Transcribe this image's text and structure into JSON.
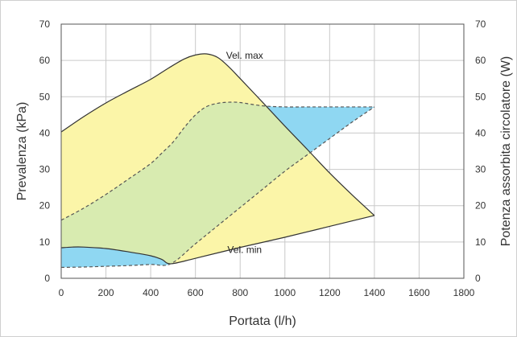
{
  "chart_data": {
    "type": "area",
    "xlabel": "Portata (l/h)",
    "ylabel": "Prevalenza (kPa)",
    "y2label": "Potenza assorbita circolatore (W)",
    "xlim": [
      0,
      1800
    ],
    "ylim": [
      0,
      70
    ],
    "y2lim": [
      0,
      70
    ],
    "xticks": [
      "0",
      "200",
      "400",
      "600",
      "800",
      "1000",
      "1200",
      "1400",
      "1600",
      "1800"
    ],
    "yticks": [
      "0",
      "10",
      "20",
      "30",
      "40",
      "50",
      "60",
      "70"
    ],
    "y2ticks": [
      "0",
      "10",
      "20",
      "30",
      "40",
      "50",
      "60",
      "70"
    ],
    "grid": true,
    "colors": {
      "head_area": "#fbf5a8",
      "power_area": "#8fd7f2",
      "overlap_area": "#d8ebb0"
    },
    "annotations": [
      {
        "text": "Vel. max",
        "x": 820,
        "y": 60.5
      },
      {
        "text": "Vel. min",
        "x": 820,
        "y": 7
      }
    ],
    "series": [
      {
        "kind": "head",
        "axis": "left",
        "style": "solid",
        "label": "Vel. max",
        "x": [
          0,
          100,
          200,
          300,
          400,
          480,
          550,
          600,
          650,
          700,
          750,
          800,
          900,
          1000,
          1100,
          1200,
          1300,
          1400
        ],
        "y": [
          40.3,
          44.5,
          48.3,
          51.6,
          54.8,
          57.9,
          60.4,
          61.5,
          61.8,
          60.8,
          58.2,
          55.0,
          48.5,
          41.9,
          35.5,
          29.0,
          23.0,
          17.3
        ]
      },
      {
        "kind": "head",
        "axis": "left",
        "style": "solid",
        "label": "Vel. min",
        "x": [
          0,
          50,
          100,
          200,
          300,
          400,
          450,
          490,
          600,
          800,
          1000,
          1200,
          1400
        ],
        "y": [
          8.4,
          8.6,
          8.6,
          8.2,
          7.3,
          6.2,
          5.2,
          4.0,
          5.5,
          8.5,
          11.3,
          14.3,
          17.3
        ]
      },
      {
        "kind": "power",
        "axis": "right",
        "style": "dashed",
        "label": "Vel. max",
        "x": [
          0,
          100,
          200,
          300,
          400,
          450,
          500,
          550,
          600,
          650,
          700,
          750,
          800,
          900,
          1000,
          1100,
          1200,
          1400
        ],
        "y": [
          16.0,
          19.3,
          23.1,
          27.3,
          31.6,
          34.5,
          37.5,
          41.5,
          45.0,
          47.3,
          48.2,
          48.5,
          48.4,
          47.5,
          47.2,
          47.2,
          47.2,
          47.2
        ]
      },
      {
        "kind": "power",
        "axis": "right",
        "style": "dashed",
        "label": "Vel. min",
        "x": [
          0,
          100,
          200,
          300,
          400,
          490,
          600,
          700,
          800,
          900,
          1000,
          1100,
          1200,
          1300,
          1400
        ],
        "y": [
          3.0,
          3.1,
          3.3,
          3.5,
          3.8,
          4.0,
          9.5,
          14.5,
          19.5,
          24.5,
          29.5,
          34.0,
          38.5,
          43.0,
          47.2
        ]
      }
    ]
  }
}
